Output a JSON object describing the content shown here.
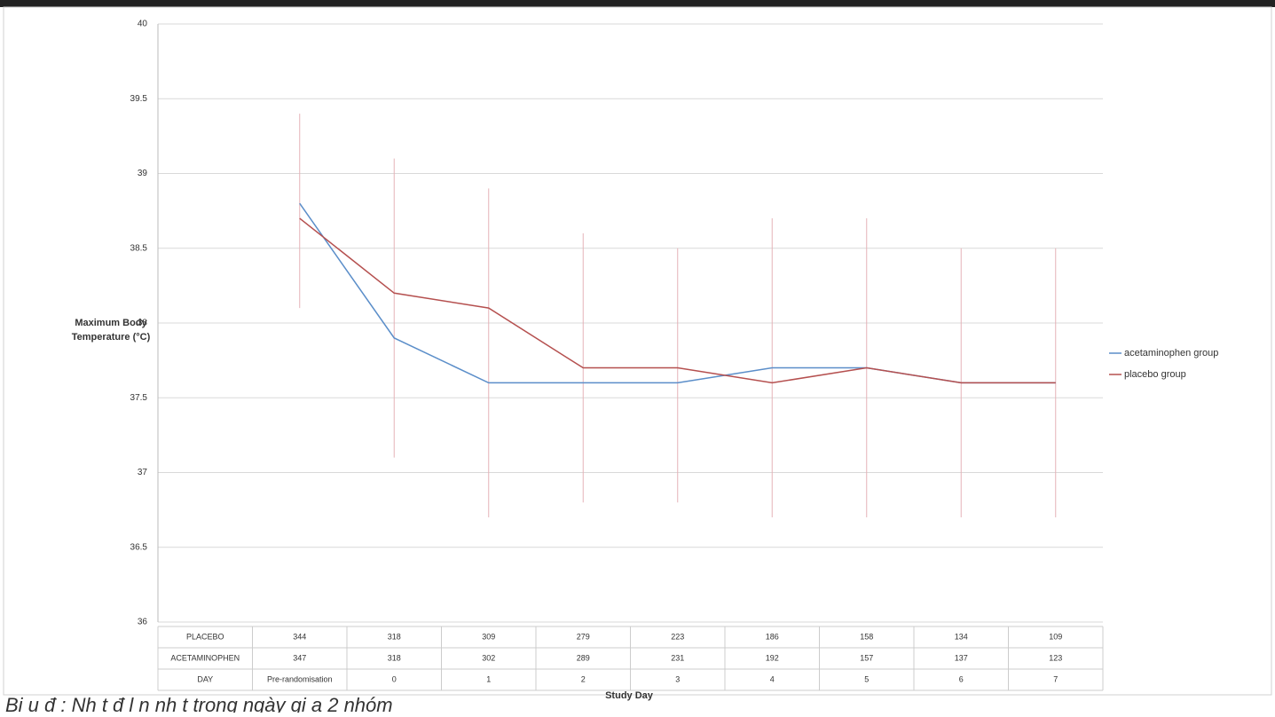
{
  "chart_data": {
    "type": "line",
    "y_label": "Maximum Body Temperature (°C)",
    "x_label": "Study Day",
    "caption": "Bi u đ : Nh t đ l n nh t trong ngày gi a 2 nhóm",
    "categories": [
      "Pre-randomisation",
      "0",
      "1",
      "2",
      "3",
      "4",
      "5",
      "6",
      "7"
    ],
    "ylim": [
      36,
      40
    ],
    "yticks": [
      36,
      36.5,
      37,
      37.5,
      38,
      38.5,
      39,
      39.5,
      40
    ],
    "grid": true,
    "legend": "right",
    "series": [
      {
        "name": "acetaminophen group",
        "color": "#5b8ec9",
        "values": [
          38.8,
          37.9,
          37.6,
          37.6,
          37.6,
          37.7,
          37.7,
          37.6,
          37.6
        ]
      },
      {
        "name": "placebo group",
        "color": "#b5504f",
        "error_color": "#e6b3b8",
        "values": [
          38.7,
          38.2,
          38.1,
          37.7,
          37.7,
          37.6,
          37.7,
          37.6,
          37.6
        ],
        "upper": [
          39.4,
          39.1,
          38.9,
          38.6,
          38.5,
          38.7,
          38.7,
          38.5,
          38.5
        ],
        "lower": [
          38.1,
          37.1,
          36.7,
          36.8,
          36.8,
          36.7,
          36.7,
          36.7,
          36.7
        ]
      }
    ],
    "table": [
      {
        "label": "PLACEBO",
        "values": [
          344,
          318,
          309,
          279,
          223,
          186,
          158,
          134,
          109
        ]
      },
      {
        "label": "ACETAMINOPHEN",
        "values": [
          347,
          318,
          302,
          289,
          231,
          192,
          157,
          137,
          123
        ]
      },
      {
        "label": "DAY",
        "ref": "categories"
      }
    ]
  }
}
